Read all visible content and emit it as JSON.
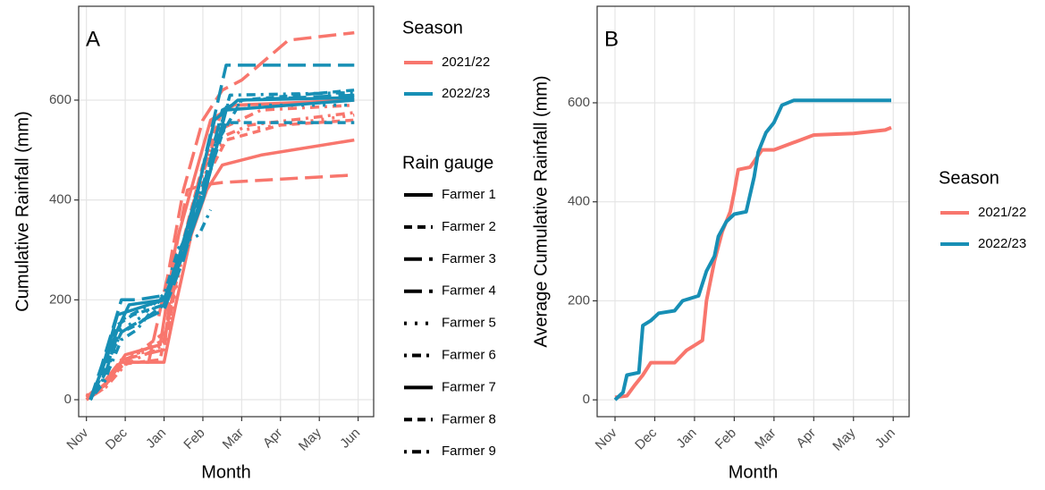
{
  "chart_data": [
    {
      "type": "line",
      "label": "A",
      "x_label": "Month",
      "y_label": "Cumulative Rainfall (mm)",
      "xlim": [
        -0.2,
        7.4
      ],
      "xticks": [
        {
          "value": 0,
          "label": "Nov"
        },
        {
          "value": 1,
          "label": "Dec"
        },
        {
          "value": 2,
          "label": "Jan"
        },
        {
          "value": 3,
          "label": "Feb"
        },
        {
          "value": 4,
          "label": "Mar"
        },
        {
          "value": 5,
          "label": "Apr"
        },
        {
          "value": 6,
          "label": "May"
        },
        {
          "value": 7,
          "label": "Jun"
        }
      ],
      "ylim": [
        -34,
        788
      ],
      "yticks": [
        0,
        200,
        400,
        600
      ],
      "grid": true,
      "legends": [
        {
          "title": "Season",
          "items": [
            {
              "name": "2021/22",
              "color": "#f8766d"
            },
            {
              "name": "2022/23",
              "color": "#178fb5"
            }
          ]
        },
        {
          "title": "Rain gauge",
          "items": [
            {
              "name": "Farmer 1",
              "dash": "solid"
            },
            {
              "name": "Farmer 2",
              "dash": "dashed"
            },
            {
              "name": "Farmer 3",
              "dash": "longdash"
            },
            {
              "name": "Farmer 4",
              "dash": "longdash"
            },
            {
              "name": "Farmer 5",
              "dash": "dotted"
            },
            {
              "name": "Farmer 6",
              "dash": "dotdash"
            },
            {
              "name": "Farmer 7",
              "dash": "solid"
            },
            {
              "name": "Farmer 8",
              "dash": "dashed"
            },
            {
              "name": "Farmer 9",
              "dash": "dotdash"
            }
          ]
        }
      ],
      "series": [
        {
          "season": 0,
          "gauge": 0,
          "x": [
            0,
            0.5,
            0.9,
            2.0,
            2.3,
            2.7,
            3.1,
            3.5,
            4.5,
            6.9
          ],
          "values": [
            5,
            30,
            75,
            75,
            190,
            330,
            420,
            470,
            490,
            520
          ]
        },
        {
          "season": 0,
          "gauge": 1,
          "x": [
            0,
            0.4,
            0.8,
            1.9,
            2.2,
            2.6,
            3.0,
            3.6,
            5,
            6.9
          ],
          "values": [
            0,
            25,
            70,
            80,
            200,
            350,
            430,
            520,
            550,
            560
          ]
        },
        {
          "season": 0,
          "gauge": 2,
          "x": [
            0,
            0.5,
            0.9,
            2,
            2.3,
            2.6,
            3.0,
            3.5,
            6.9
          ],
          "values": [
            5,
            40,
            80,
            100,
            300,
            420,
            430,
            435,
            450
          ]
        },
        {
          "season": 0,
          "gauge": 3,
          "x": [
            0,
            0.4,
            0.9,
            1.6,
            2.1,
            2.5,
            3.0,
            3.5,
            4.0,
            5.2,
            6.9
          ],
          "values": [
            5,
            20,
            75,
            75,
            250,
            420,
            560,
            620,
            640,
            720,
            735
          ]
        },
        {
          "season": 0,
          "gauge": 4,
          "x": [
            0,
            0.5,
            1,
            2,
            2.4,
            2.8,
            3.3,
            4,
            6.9
          ],
          "values": [
            5,
            30,
            90,
            100,
            260,
            400,
            500,
            540,
            570
          ]
        },
        {
          "season": 0,
          "gauge": 5,
          "x": [
            0,
            0.5,
            1,
            2,
            2.4,
            2.9,
            3.4,
            4.5,
            6.9
          ],
          "values": [
            8,
            35,
            80,
            120,
            280,
            440,
            540,
            580,
            590
          ]
        },
        {
          "season": 0,
          "gauge": 6,
          "x": [
            0,
            0.6,
            1,
            1.9,
            2.3,
            2.8,
            3.2,
            3.8,
            6.9
          ],
          "values": [
            0,
            40,
            90,
            110,
            310,
            450,
            560,
            590,
            600
          ]
        },
        {
          "season": 0,
          "gauge": 7,
          "x": [
            0,
            0.5,
            1,
            2.1,
            2.5,
            3,
            3.5,
            6.9
          ],
          "values": [
            5,
            30,
            75,
            140,
            320,
            470,
            580,
            600
          ]
        },
        {
          "season": 0,
          "gauge": 8,
          "x": [
            0,
            0.5,
            1,
            2,
            2.4,
            2.9,
            3.3,
            4.2,
            6.9
          ],
          "values": [
            0,
            25,
            70,
            110,
            290,
            430,
            520,
            550,
            575
          ]
        },
        {
          "season": 1,
          "gauge": 0,
          "x": [
            0.1,
            0.4,
            0.8,
            1.1,
            2,
            2.4,
            2.9,
            3.3,
            3.9,
            6.9
          ],
          "values": [
            0,
            60,
            140,
            190,
            200,
            290,
            430,
            560,
            600,
            605
          ]
        },
        {
          "season": 1,
          "gauge": 1,
          "x": [
            0.1,
            0.4,
            0.8,
            1.2,
            2,
            2.4,
            3,
            3.4,
            4,
            6.9
          ],
          "values": [
            0,
            50,
            150,
            170,
            190,
            300,
            400,
            520,
            600,
            620
          ]
        },
        {
          "season": 1,
          "gauge": 2,
          "x": [
            0.1,
            0.5,
            0.8,
            1.2,
            2,
            2.5,
            3,
            3.5,
            4,
            6.9
          ],
          "values": [
            0,
            55,
            130,
            150,
            180,
            280,
            420,
            580,
            600,
            610
          ]
        },
        {
          "season": 1,
          "gauge": 3,
          "x": [
            0.1,
            0.4,
            0.9,
            1.3,
            2.1,
            2.6,
            3.1,
            3.6,
            6.9
          ],
          "values": [
            0,
            70,
            200,
            200,
            210,
            320,
            500,
            670,
            670
          ]
        },
        {
          "season": 1,
          "gauge": 4,
          "x": [
            0.1,
            0.5,
            0.9,
            1.4,
            2.1,
            2.6,
            3.1,
            3.6,
            6.9
          ],
          "values": [
            0,
            50,
            140,
            165,
            220,
            320,
            450,
            590,
            590
          ]
        },
        {
          "season": 1,
          "gauge": 5,
          "x": [
            0.1,
            0.5,
            0.9,
            1.3,
            2,
            2.4,
            2.9,
            3.2
          ],
          "values": [
            0,
            45,
            120,
            140,
            210,
            310,
            330,
            380
          ]
        },
        {
          "season": 1,
          "gauge": 6,
          "x": [
            0.1,
            0.4,
            0.8,
            1.2,
            2,
            2.5,
            3,
            3.6,
            6.9
          ],
          "values": [
            0,
            60,
            170,
            180,
            200,
            290,
            400,
            580,
            600
          ]
        },
        {
          "season": 1,
          "gauge": 7,
          "x": [
            0.1,
            0.4,
            0.9,
            1.3,
            2,
            2.5,
            3.1,
            3.6,
            6.9
          ],
          "values": [
            0,
            50,
            135,
            150,
            190,
            300,
            440,
            555,
            555
          ]
        },
        {
          "season": 1,
          "gauge": 8,
          "x": [
            0.1,
            0.5,
            0.9,
            1.4,
            2.1,
            2.6,
            3.2,
            3.7,
            6.9
          ],
          "values": [
            0,
            40,
            160,
            180,
            210,
            330,
            480,
            610,
            615
          ]
        }
      ]
    },
    {
      "type": "line",
      "label": "B",
      "x_label": "Month",
      "y_label": "Average Cumulative Rainfall (mm)",
      "xlim": [
        -0.45,
        7.4
      ],
      "xticks": [
        {
          "value": 0,
          "label": "Nov"
        },
        {
          "value": 1,
          "label": "Dec"
        },
        {
          "value": 2,
          "label": "Jan"
        },
        {
          "value": 3,
          "label": "Feb"
        },
        {
          "value": 4,
          "label": "Mar"
        },
        {
          "value": 5,
          "label": "Apr"
        },
        {
          "value": 6,
          "label": "May"
        },
        {
          "value": 7,
          "label": "Jun"
        }
      ],
      "ylim": [
        -34,
        795
      ],
      "yticks": [
        0,
        200,
        400,
        600
      ],
      "grid": true,
      "legend_title": "Season",
      "series": [
        {
          "name": "2021/22",
          "color": "#f8766d",
          "x": [
            0,
            0.3,
            0.5,
            0.7,
            0.9,
            1.5,
            1.8,
            2,
            2.2,
            2.3,
            2.5,
            2.7,
            2.9,
            3.0,
            3.1,
            3.4,
            3.7,
            4.0,
            4.5,
            5.0,
            6.0,
            6.8,
            6.95
          ],
          "values": [
            5,
            8,
            30,
            50,
            75,
            75,
            100,
            110,
            120,
            200,
            280,
            340,
            380,
            420,
            465,
            470,
            505,
            505,
            520,
            535,
            538,
            545,
            550
          ]
        },
        {
          "name": "2022/23",
          "color": "#178fb5",
          "x": [
            0,
            0.2,
            0.3,
            0.6,
            0.7,
            0.9,
            1.1,
            1.5,
            1.7,
            2.1,
            2.3,
            2.5,
            2.6,
            2.8,
            3.0,
            3.3,
            3.5,
            3.6,
            3.8,
            4.0,
            4.2,
            4.5,
            6.95
          ],
          "values": [
            0,
            15,
            50,
            55,
            150,
            160,
            175,
            180,
            200,
            210,
            260,
            290,
            330,
            360,
            375,
            380,
            450,
            500,
            540,
            560,
            595,
            605,
            605
          ]
        }
      ]
    }
  ]
}
